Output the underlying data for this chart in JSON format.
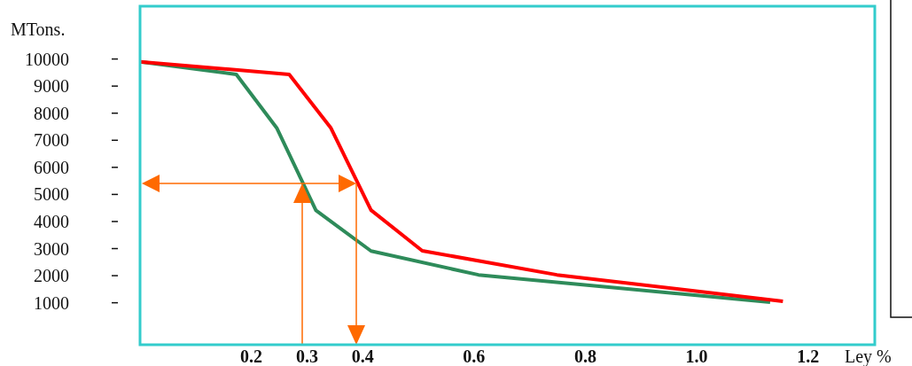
{
  "chart_data": {
    "type": "line",
    "ylabel": "MTons.",
    "xlabel": "Ley %",
    "xlim": [
      0,
      1.32
    ],
    "ylim": [
      -550,
      11950
    ],
    "xticks": [
      0.2,
      0.3,
      0.4,
      0.6,
      0.8,
      {
        "value": 1.0,
        "label": "1.0"
      },
      1.2
    ],
    "yticks": [
      1000,
      2000,
      3000,
      4000,
      5000,
      6000,
      7000,
      8000,
      9000,
      10000
    ],
    "grid": false,
    "marker": "none",
    "line_style": "solid",
    "series": [
      {
        "color": "#2e8b5a",
        "x": [
          0,
          0.173,
          0.246,
          0.316,
          0.415,
          0.608,
          1.132
        ],
        "values": [
          9900,
          9430,
          7440,
          4410,
          2910,
          2030,
          1020
        ]
      },
      {
        "color": "#ff0000",
        "x": [
          0,
          0.268,
          0.343,
          0.415,
          0.507,
          0.749,
          1.155
        ],
        "values": [
          9900,
          9430,
          7450,
          4420,
          2920,
          2030,
          1050
        ]
      }
    ]
  }
}
